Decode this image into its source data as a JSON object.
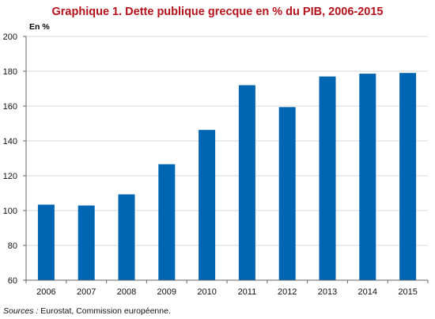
{
  "colors": {
    "title": "#b5121b",
    "bar": "#0066b3",
    "grid": "#d9d9d9",
    "axis": "#666666",
    "background": "#ffffff"
  },
  "chart_data": {
    "type": "bar",
    "title": "Graphique 1. Dette publique grecque en % du PIB, 2006-2015",
    "unit_label": "En %",
    "categories": [
      "2006",
      "2007",
      "2008",
      "2009",
      "2010",
      "2011",
      "2012",
      "2013",
      "2014",
      "2015"
    ],
    "values": [
      103.4,
      102.9,
      109.3,
      126.6,
      146.3,
      172.0,
      159.4,
      177.0,
      178.6,
      179.0
    ],
    "ylim": [
      60,
      200
    ],
    "yticks": [
      60,
      80,
      100,
      120,
      140,
      160,
      180,
      200
    ],
    "grid": true,
    "legend": "none"
  },
  "source": {
    "label": "Sources :",
    "text": " Eurostat, Commission européenne."
  }
}
